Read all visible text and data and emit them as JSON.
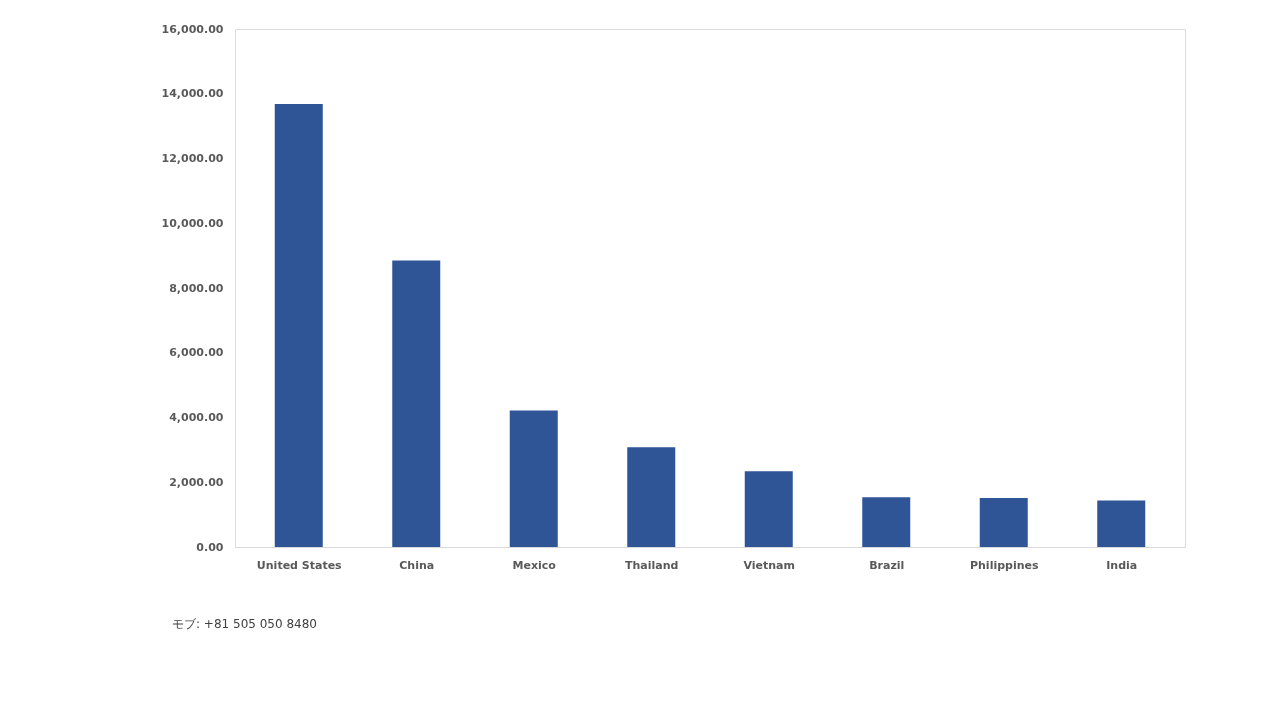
{
  "chart_data": {
    "type": "bar",
    "categories": [
      "United States",
      "China",
      "Mexico",
      "Thailand",
      "Vietnam",
      "Brazil",
      "Philippines",
      "India"
    ],
    "values": [
      13680,
      8850,
      4220,
      3080,
      2340,
      1540,
      1510,
      1440
    ],
    "color": "#2f5597",
    "ylim": [
      0,
      16000
    ],
    "yticks": [
      {
        "value": 0,
        "label": "0.00"
      },
      {
        "value": 2000,
        "label": "2,000.00"
      },
      {
        "value": 4000,
        "label": "4,000.00"
      },
      {
        "value": 6000,
        "label": "6,000.00"
      },
      {
        "value": 8000,
        "label": "8,000.00"
      },
      {
        "value": 10000,
        "label": "10,000.00"
      },
      {
        "value": 12000,
        "label": "12,000.00"
      },
      {
        "value": 14000,
        "label": "14,000.00"
      },
      {
        "value": 16000,
        "label": "16,000.00"
      }
    ],
    "grid": false,
    "annotations": [
      "モブ: +81 505 050 8480"
    ]
  }
}
